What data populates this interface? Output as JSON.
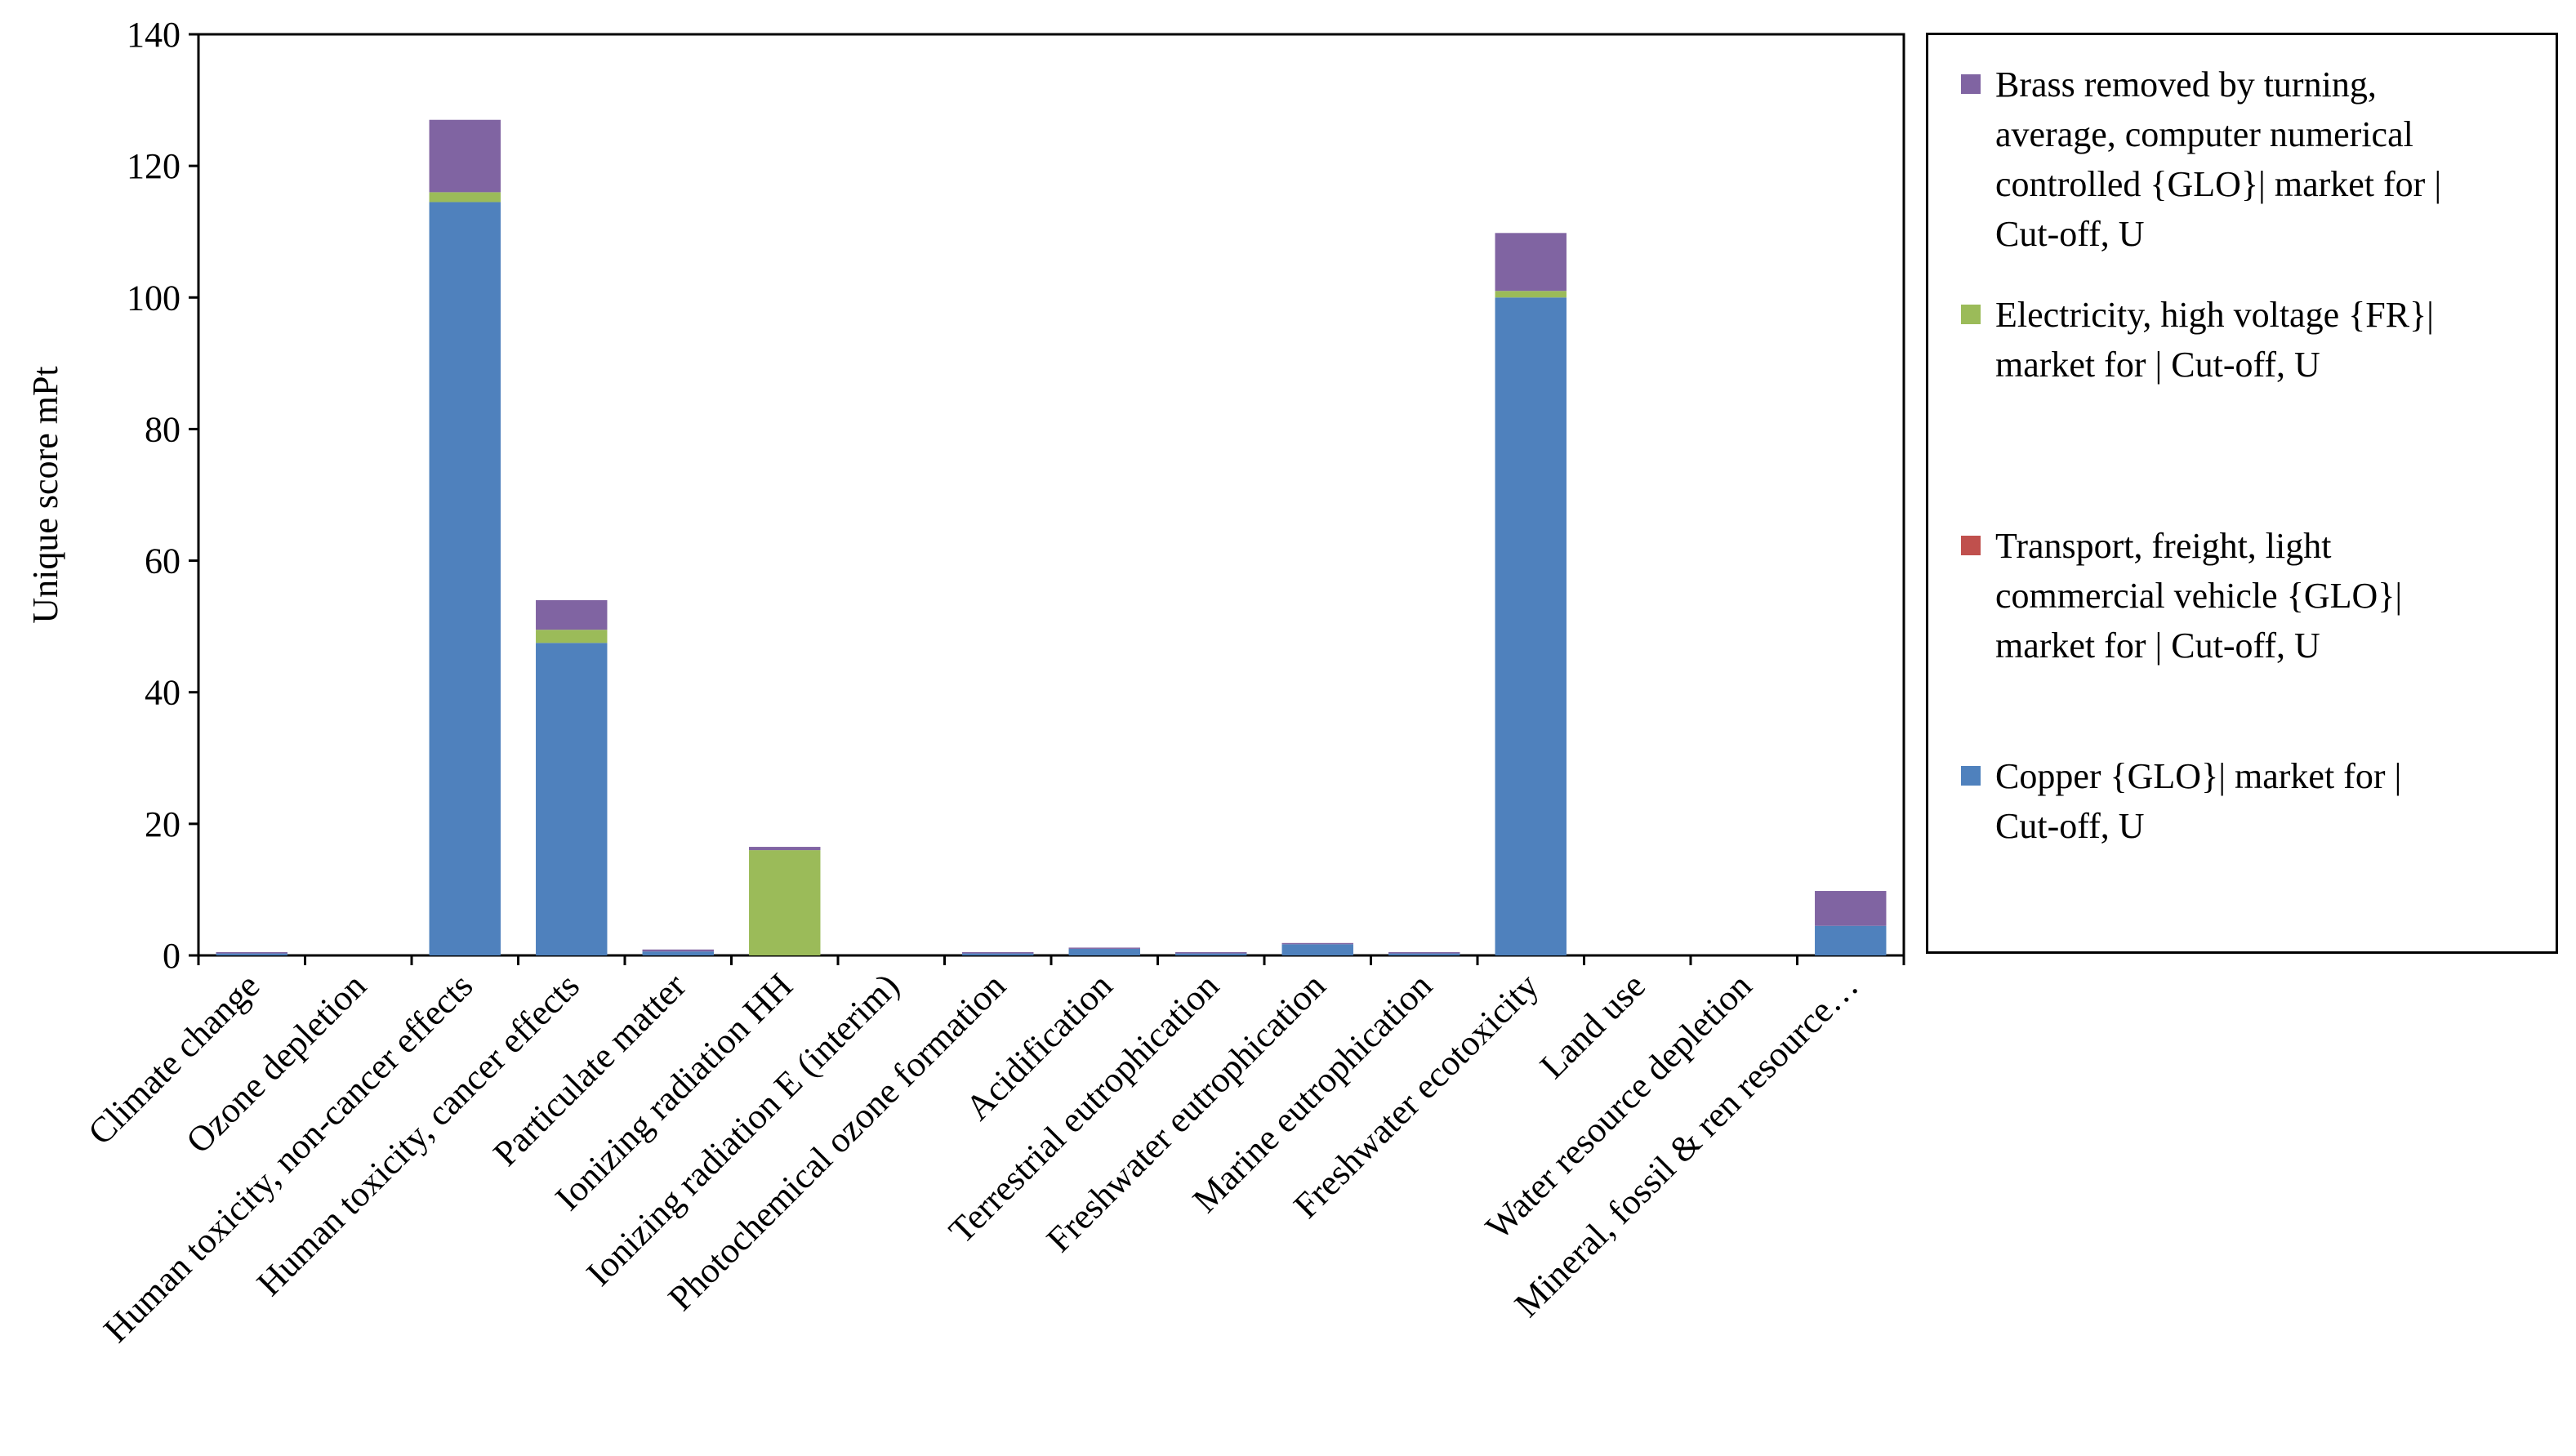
{
  "chart_data": {
    "type": "bar",
    "stacked": true,
    "ylabel": "Unique score mPt",
    "xlabel": "",
    "ylim": [
      0,
      140
    ],
    "yticks": [
      0,
      20,
      40,
      60,
      80,
      100,
      120,
      140
    ],
    "categories": [
      "Climate change",
      "Ozone depletion",
      "Human toxicity, non-cancer effects",
      "Human toxicity, cancer effects",
      "Particulate matter",
      "Ionizing radiation HH",
      "Ionizing radiation E (interim)",
      "Photochemical ozone formation",
      "Acidification",
      "Terrestrial eutrophication",
      "Freshwater eutrophication",
      "Marine eutrophication",
      "Freshwater ecotoxicity",
      "Land use",
      "Water resource depletion",
      "Mineral, fossil & ren resource…"
    ],
    "series": [
      {
        "name": "Copper {GLO}| market for | Cut-off, U",
        "color": "#4F81BD",
        "values": [
          0.3,
          0,
          114.5,
          47.5,
          0.6,
          0,
          0,
          0.3,
          1.0,
          0.3,
          1.7,
          0.3,
          100.0,
          0,
          0,
          4.5
        ]
      },
      {
        "name": "Transport, freight, light commercial vehicle {GLO}| market for | Cut-off, U",
        "color": "#C0504D",
        "values": [
          0,
          0,
          0,
          0,
          0,
          0,
          0,
          0,
          0,
          0,
          0,
          0,
          0,
          0,
          0,
          0
        ]
      },
      {
        "name": "Electricity, high voltage {FR}| market for | Cut-off, U",
        "color": "#9BBB59",
        "values": [
          0,
          0,
          1.5,
          2.0,
          0,
          16.0,
          0,
          0,
          0,
          0,
          0,
          0,
          1.0,
          0,
          0,
          0
        ]
      },
      {
        "name": "Brass removed by turning, average, computer numerical controlled {GLO}| market for | Cut-off, U",
        "color": "#8064A2",
        "values": [
          0.2,
          0,
          11.0,
          4.5,
          0.3,
          0.5,
          0,
          0.2,
          0.1,
          0.2,
          0.1,
          0.2,
          8.8,
          0,
          0,
          5.3
        ]
      }
    ]
  },
  "legend": {
    "brass_lines": [
      "Brass removed by turning,",
      "average, computer numerical",
      "controlled {GLO}| market for |",
      "Cut-off, U"
    ],
    "electricity_lines": [
      "Electricity, high voltage {FR}|",
      "market for | Cut-off, U"
    ],
    "transport_lines": [
      "Transport, freight, light",
      "commercial vehicle {GLO}|",
      "market for | Cut-off, U"
    ],
    "copper_lines": [
      "Copper {GLO}| market for |",
      "Cut-off, U"
    ]
  }
}
